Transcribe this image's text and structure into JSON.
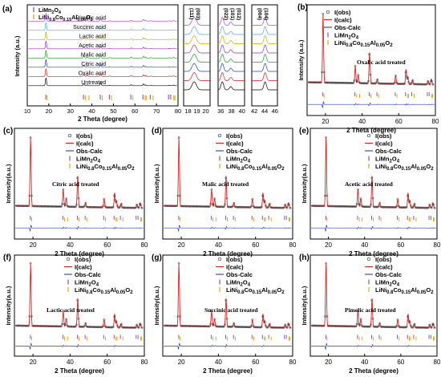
{
  "colors": {
    "limn": "#7b3fbf",
    "nca": "#e0a000",
    "obs": "#333333",
    "calc": "#e02020",
    "diff": "#1f3fbf",
    "series": [
      "#000000",
      "#d4202a",
      "#1f3fbf",
      "#17a31d",
      "#9b2fbf",
      "#c0b000",
      "#4fa8d8",
      "#b040e0"
    ]
  },
  "chart_data": [
    {
      "panel": "(a)",
      "type": "line",
      "xlabel": "2 Theta (degree)",
      "ylabel": "Intensity (a.u.)",
      "xlim": [
        10,
        80
      ],
      "xticks": [
        10,
        20,
        30,
        40,
        50,
        60,
        70,
        80
      ],
      "series": [
        {
          "name": "Untreated"
        },
        {
          "name": "Oxalic acid"
        },
        {
          "name": "Citric acid"
        },
        {
          "name": "Malic acid"
        },
        {
          "name": "Acetic acid"
        },
        {
          "name": "Lactic acid"
        },
        {
          "name": "Succinic acid"
        },
        {
          "name": "Pimelic acid"
        }
      ],
      "peaks_limn": [
        18.6,
        36.1,
        43.9,
        48.1,
        58.1,
        63.7,
        67.1,
        75.6,
        76.6
      ],
      "peaks_nca": [
        18.8,
        36.6,
        38.2,
        44.4,
        48.6,
        58.6,
        64.3,
        64.9,
        68.0,
        77.6,
        78.1
      ],
      "legend": [
        "LiMn2O4",
        "LiNi0.8Co0.15Al0.05O2"
      ],
      "insets": [
        {
          "xticks": [
            18,
            19,
            20
          ],
          "labels": [
            "(111)",
            "(003)"
          ]
        },
        {
          "xticks": [
            36,
            38,
            40
          ],
          "labels": [
            "(022)",
            "(101)",
            "(012)"
          ]
        },
        {
          "xticks": [
            42,
            44,
            46
          ],
          "labels": [
            "(004)",
            "(104)"
          ]
        }
      ]
    },
    {
      "panel": "(b)",
      "type": "line",
      "treatment": "Oxalic acid treated",
      "xlim": [
        10,
        80
      ],
      "xticks": [
        20,
        40,
        60,
        80
      ],
      "xlabel": "2 Theta (degree)",
      "ylabel": "Intensity (a.u.)",
      "legend": [
        "I(obs)",
        "I(calc)",
        "Obs-Calc",
        "LiMn2O4",
        "LiNi0.8Co0.15Al0.05O2"
      ]
    },
    {
      "panel": "(c)",
      "type": "line",
      "treatment": "Citric acid treated",
      "xlim": [
        10,
        80
      ],
      "xticks": [
        20,
        40,
        60,
        80
      ],
      "xlabel": "2 Theta (degree)",
      "ylabel": "Intensity(a.u.)",
      "legend": [
        "I(obs)",
        "I(calc)",
        "Obs-Calc",
        "LiMn2O4",
        "LiNi0.8Co0.15Al0.05O2"
      ]
    },
    {
      "panel": "(d)",
      "type": "line",
      "treatment": "Malic acid treated",
      "xlim": [
        10,
        80
      ],
      "xticks": [
        20,
        40,
        60,
        80
      ],
      "xlabel": "2 Theta (degree)",
      "ylabel": "Intensity(a.u.)",
      "legend": [
        "I(obs)",
        "I(calc)",
        "Obs-Calc",
        "LiMn2O4",
        "LiNi0.8Co0.15Al0.05O2"
      ]
    },
    {
      "panel": "(e)",
      "type": "line",
      "treatment": "Acetic acid treated",
      "xlim": [
        10,
        80
      ],
      "xticks": [
        20,
        40,
        60,
        80
      ],
      "xlabel": "2 Theta (degree)",
      "ylabel": "Intensity(a.u.)",
      "legend": [
        "I(obs)",
        "I(calc)",
        "Obs-Calc",
        "LiMn2O4",
        "LiNi0.8Co0.15Al0.05O2"
      ]
    },
    {
      "panel": "(f)",
      "type": "line",
      "treatment": "Lactic acid treated",
      "xlim": [
        10,
        80
      ],
      "xticks": [
        20,
        40,
        60,
        80
      ],
      "xlabel": "2 Theta (degree)",
      "ylabel": "Intensity(a.u.)",
      "legend": [
        "I(obs)",
        "I(calc)",
        "Obs-Calc",
        "LiMn2O4",
        "LiNi0.8Co0.15Al0.05O2"
      ]
    },
    {
      "panel": "(g)",
      "type": "line",
      "treatment": "Succinic acid treated",
      "xlim": [
        10,
        80
      ],
      "xticks": [
        20,
        40,
        60,
        80
      ],
      "xlabel": "2 Theta (degree)",
      "ylabel": "Intensity(a.u.)",
      "legend": [
        "I(obs)",
        "I(calc)",
        "Obs-Calc",
        "LiMn2O4",
        "LiNi0.8Co0.15Al0.05O2"
      ]
    },
    {
      "panel": "(h)",
      "type": "line",
      "treatment": "Pimelic acid treated",
      "xlim": [
        10,
        80
      ],
      "xticks": [
        20,
        40,
        60,
        80
      ],
      "xlabel": "2 Theta (degree)",
      "ylabel": "Intensity(a.u.)",
      "legend": [
        "I(obs)",
        "I(calc)",
        "Obs-Calc",
        "LiMn2O4",
        "LiNi0.8Co0.15Al0.05O2"
      ]
    }
  ]
}
